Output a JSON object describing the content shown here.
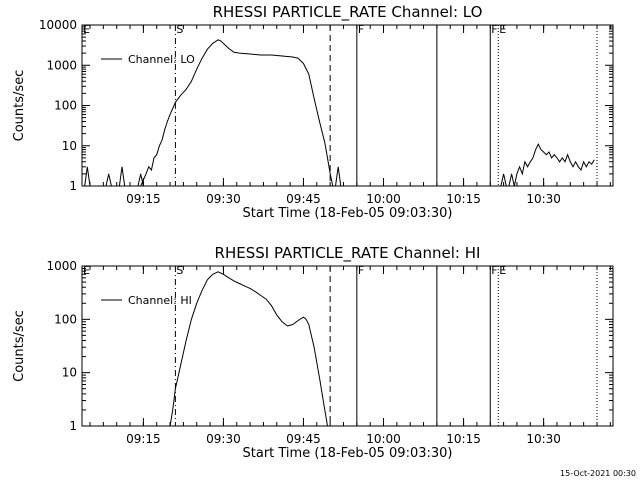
{
  "chart_data": [
    {
      "type": "line",
      "title": "RHESSI PARTICLE_RATE Channel: LO",
      "xlabel": "Start Time (18-Feb-05 09:03:30)",
      "ylabel": "Counts/sec",
      "yscale": "log",
      "ylim": [
        1,
        10000
      ],
      "xlim": [
        "09:03:30",
        "10:43:00"
      ],
      "x_ticks": [
        "09:15",
        "09:30",
        "09:45",
        "10:00",
        "10:15",
        "10:30"
      ],
      "y_ticks": [
        "1",
        "10",
        "100",
        "1000",
        "10000"
      ],
      "legend": {
        "label": "Channel: LO",
        "position": "top-left"
      },
      "markers": [
        {
          "label": "E",
          "time": "09:03:30",
          "style": "dotted"
        },
        {
          "label": "S",
          "time": "09:21:00",
          "style": "dashdot"
        },
        {
          "label": "",
          "time": "09:50:00",
          "style": "dashed"
        },
        {
          "label": "F",
          "time": "09:55:00",
          "style": "solid"
        },
        {
          "label": "",
          "time": "10:10:00",
          "style": "solid"
        },
        {
          "label": "F",
          "time": "10:20:00",
          "style": "solid"
        },
        {
          "label": "E",
          "time": "10:21:30",
          "style": "dotted"
        },
        {
          "label": "",
          "time": "10:40:00",
          "style": "dotted"
        }
      ],
      "series": [
        {
          "name": "Channel: LO",
          "segments": [
            [
              [
                "09:04:00",
                1
              ],
              [
                "09:04:30",
                3
              ],
              [
                "09:05:00",
                1
              ]
            ],
            [
              [
                "09:08:00",
                1
              ],
              [
                "09:08:30",
                2
              ],
              [
                "09:09:00",
                1
              ]
            ],
            [
              [
                "09:10:30",
                1
              ],
              [
                "09:11:00",
                3
              ],
              [
                "09:11:30",
                1
              ]
            ],
            [
              [
                "09:14:00",
                1
              ],
              [
                "09:14:30",
                2
              ],
              [
                "09:15:00",
                1
              ]
            ],
            [
              [
                "09:14:30",
                1
              ],
              [
                "09:15:30",
                2
              ],
              [
                "09:16:00",
                3
              ],
              [
                "09:16:30",
                2.5
              ],
              [
                "09:17:00",
                5
              ],
              [
                "09:17:30",
                6
              ],
              [
                "09:18:00",
                10
              ],
              [
                "09:18:30",
                14
              ],
              [
                "09:19:00",
                25
              ],
              [
                "09:19:30",
                40
              ],
              [
                "09:20:00",
                60
              ],
              [
                "09:21:00",
                120
              ],
              [
                "09:22:00",
                180
              ],
              [
                "09:23:00",
                250
              ],
              [
                "09:24:00",
                400
              ],
              [
                "09:25:00",
                800
              ],
              [
                "09:26:00",
                1500
              ],
              [
                "09:27:00",
                2500
              ],
              [
                "09:28:00",
                3500
              ],
              [
                "09:29:00",
                4300
              ],
              [
                "09:29:30",
                4000
              ],
              [
                "09:30:00",
                3500
              ],
              [
                "09:31:00",
                2600
              ],
              [
                "09:32:00",
                2100
              ],
              [
                "09:33:00",
                2000
              ],
              [
                "09:35:00",
                1900
              ],
              [
                "09:37:00",
                1800
              ],
              [
                "09:39:00",
                1800
              ],
              [
                "09:41:00",
                1700
              ],
              [
                "09:43:00",
                1600
              ],
              [
                "09:44:00",
                1500
              ],
              [
                "09:45:00",
                1100
              ],
              [
                "09:46:00",
                600
              ],
              [
                "09:47:00",
                150
              ],
              [
                "09:48:00",
                40
              ],
              [
                "09:49:00",
                12
              ],
              [
                "09:49:30",
                5
              ],
              [
                "09:50:00",
                2
              ],
              [
                "09:50:30",
                1
              ]
            ],
            [
              [
                "09:51:00",
                1
              ],
              [
                "09:51:30",
                3
              ],
              [
                "09:52:00",
                1
              ]
            ],
            [
              [
                "10:22:00",
                1
              ],
              [
                "10:22:30",
                2
              ],
              [
                "10:23:00",
                1
              ]
            ],
            [
              [
                "10:23:30",
                1
              ],
              [
                "10:24:00",
                2
              ],
              [
                "10:24:30",
                1
              ]
            ],
            [
              [
                "10:24:30",
                1
              ],
              [
                "10:25:00",
                2
              ],
              [
                "10:25:30",
                3
              ],
              [
                "10:26:00",
                2
              ],
              [
                "10:26:30",
                4
              ],
              [
                "10:27:00",
                3
              ],
              [
                "10:27:30",
                4
              ],
              [
                "10:28:00",
                5
              ],
              [
                "10:28:30",
                8
              ],
              [
                "10:29:00",
                11
              ],
              [
                "10:29:30",
                8
              ],
              [
                "10:30:00",
                7
              ],
              [
                "10:30:30",
                6
              ],
              [
                "10:31:00",
                7
              ],
              [
                "10:31:30",
                5
              ],
              [
                "10:32:00",
                6
              ],
              [
                "10:32:30",
                5
              ],
              [
                "10:33:00",
                4
              ],
              [
                "10:33:30",
                5
              ],
              [
                "10:34:00",
                4
              ],
              [
                "10:34:30",
                6
              ],
              [
                "10:35:00",
                4
              ],
              [
                "10:35:30",
                3
              ],
              [
                "10:36:00",
                4
              ],
              [
                "10:36:30",
                3
              ],
              [
                "10:37:00",
                2.5
              ],
              [
                "10:37:30",
                4
              ],
              [
                "10:38:00",
                3
              ],
              [
                "10:38:30",
                4
              ],
              [
                "10:39:00",
                3.5
              ],
              [
                "10:39:30",
                4.5
              ]
            ]
          ]
        }
      ]
    },
    {
      "type": "line",
      "title": "RHESSI PARTICLE_RATE Channel: HI",
      "xlabel": "Start Time (18-Feb-05 09:03:30)",
      "ylabel": "Counts/sec",
      "yscale": "log",
      "ylim": [
        1,
        1000
      ],
      "xlim": [
        "09:03:30",
        "10:43:00"
      ],
      "x_ticks": [
        "09:15",
        "09:30",
        "09:45",
        "10:00",
        "10:15",
        "10:30"
      ],
      "y_ticks": [
        "1",
        "10",
        "100",
        "1000"
      ],
      "legend": {
        "label": "Channel: HI",
        "position": "top-left"
      },
      "markers": [
        {
          "label": "E",
          "time": "09:03:30",
          "style": "dotted"
        },
        {
          "label": "S",
          "time": "09:21:00",
          "style": "dashdot"
        },
        {
          "label": "",
          "time": "09:50:00",
          "style": "dashed"
        },
        {
          "label": "F",
          "time": "09:55:00",
          "style": "solid"
        },
        {
          "label": "",
          "time": "10:10:00",
          "style": "solid"
        },
        {
          "label": "F",
          "time": "10:20:00",
          "style": "solid"
        },
        {
          "label": "E",
          "time": "10:21:30",
          "style": "dotted"
        },
        {
          "label": "",
          "time": "10:40:00",
          "style": "dotted"
        }
      ],
      "series": [
        {
          "name": "Channel: HI",
          "segments": [
            [
              [
                "09:20:00",
                1
              ],
              [
                "09:20:30",
                2
              ],
              [
                "09:21:00",
                5
              ],
              [
                "09:22:00",
                14
              ],
              [
                "09:23:00",
                40
              ],
              [
                "09:24:00",
                100
              ],
              [
                "09:25:00",
                200
              ],
              [
                "09:26:00",
                350
              ],
              [
                "09:27:00",
                550
              ],
              [
                "09:28:00",
                700
              ],
              [
                "09:29:00",
                780
              ],
              [
                "09:30:00",
                700
              ],
              [
                "09:31:00",
                600
              ],
              [
                "09:32:00",
                520
              ],
              [
                "09:33:00",
                470
              ],
              [
                "09:34:00",
                420
              ],
              [
                "09:35:00",
                380
              ],
              [
                "09:36:00",
                330
              ],
              [
                "09:37:00",
                280
              ],
              [
                "09:38:00",
                240
              ],
              [
                "09:39:00",
                180
              ],
              [
                "09:40:00",
                120
              ],
              [
                "09:41:00",
                90
              ],
              [
                "09:42:00",
                75
              ],
              [
                "09:43:00",
                80
              ],
              [
                "09:44:00",
                95
              ],
              [
                "09:45:00",
                110
              ],
              [
                "09:45:30",
                100
              ],
              [
                "09:46:00",
                80
              ],
              [
                "09:47:00",
                30
              ],
              [
                "09:48:00",
                8
              ],
              [
                "09:49:00",
                2
              ],
              [
                "09:49:30",
                1
              ]
            ]
          ]
        }
      ]
    }
  ],
  "footer": {
    "timestamp": "15-Oct-2021 00:30"
  }
}
